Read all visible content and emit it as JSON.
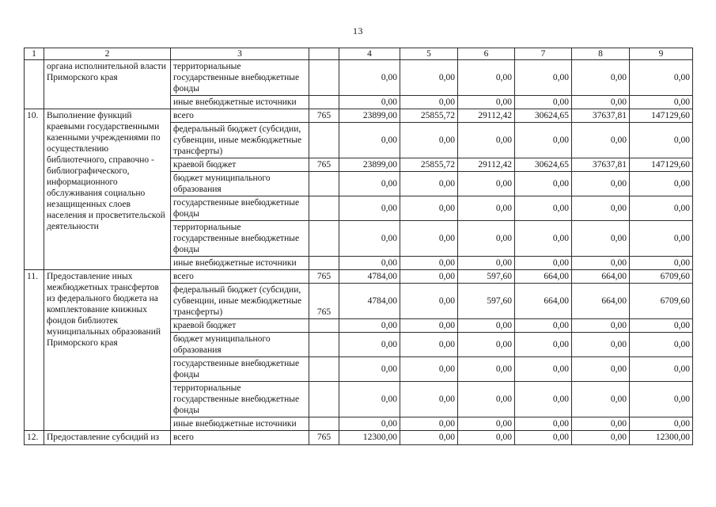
{
  "page": {
    "number": "13"
  },
  "table": {
    "header": [
      "1",
      "2",
      "3",
      "",
      "4",
      "5",
      "6",
      "7",
      "8",
      "9"
    ],
    "sections": [
      {
        "num": "",
        "title": "органа исполнительной власти Приморского края",
        "rows": [
          {
            "source": "территориальные государственные внебюджетные фонды",
            "code": "",
            "values": [
              "0,00",
              "0,00",
              "0,00",
              "0,00",
              "0,00",
              "0,00"
            ]
          },
          {
            "source": "иные внебюджетные источники",
            "code": "",
            "values": [
              "0,00",
              "0,00",
              "0,00",
              "0,00",
              "0,00",
              "0,00"
            ]
          }
        ]
      },
      {
        "num": "10.",
        "title": "Выполнение функций краевыми государственными казенными учреждениями по осуществлению библиотечного, справочно - библиографического, информационного обслуживания социально незащищенных слоев населения и просветительской деятельности",
        "rows": [
          {
            "source": "всего",
            "code": "765",
            "values": [
              "23899,00",
              "25855,72",
              "29112,42",
              "30624,65",
              "37637,81",
              "147129,60"
            ]
          },
          {
            "source": "федеральный бюджет (субсидии, субвенции, иные межбюджетные трансферты)",
            "code": "",
            "values": [
              "0,00",
              "0,00",
              "0,00",
              "0,00",
              "0,00",
              "0,00"
            ]
          },
          {
            "source": "краевой бюджет",
            "code": "765",
            "values": [
              "23899,00",
              "25855,72",
              "29112,42",
              "30624,65",
              "37637,81",
              "147129,60"
            ]
          },
          {
            "source": "бюджет муниципального образования",
            "code": "",
            "values": [
              "0,00",
              "0,00",
              "0,00",
              "0,00",
              "0,00",
              "0,00"
            ]
          },
          {
            "source": "государственные внебюджетные фонды",
            "code": "",
            "values": [
              "0,00",
              "0,00",
              "0,00",
              "0,00",
              "0,00",
              "0,00"
            ]
          },
          {
            "source": "территориальные государственные внебюджетные фонды",
            "code": "",
            "values": [
              "0,00",
              "0,00",
              "0,00",
              "0,00",
              "0,00",
              "0,00"
            ]
          },
          {
            "source": "иные внебюджетные источники",
            "code": "",
            "values": [
              "0,00",
              "0,00",
              "0,00",
              "0,00",
              "0,00",
              "0,00"
            ]
          }
        ]
      },
      {
        "num": "11.",
        "title": "Предоставление иных межбюджетных трансфертов из федерального бюджета на комплектование книжных фондов библиотек муниципальных образований Приморского края",
        "rows": [
          {
            "source": "всего",
            "code": "765",
            "values": [
              "4784,00",
              "0,00",
              "597,60",
              "664,00",
              "664,00",
              "6709,60"
            ]
          },
          {
            "source": "федеральный бюджет (субсидии, субвенции, иные межбюджетные трансферты)",
            "code": "765",
            "values": [
              "4784,00",
              "0,00",
              "597,60",
              "664,00",
              "664,00",
              "6709,60"
            ]
          },
          {
            "source": "краевой бюджет",
            "code": "",
            "values": [
              "0,00",
              "0,00",
              "0,00",
              "0,00",
              "0,00",
              "0,00"
            ]
          },
          {
            "source": "бюджет муниципального образования",
            "code": "",
            "values": [
              "0,00",
              "0,00",
              "0,00",
              "0,00",
              "0,00",
              "0,00"
            ]
          },
          {
            "source": "государственные внебюджетные фонды",
            "code": "",
            "values": [
              "0,00",
              "0,00",
              "0,00",
              "0,00",
              "0,00",
              "0,00"
            ]
          },
          {
            "source": "территориальные государственные внебюджетные фонды",
            "code": "",
            "values": [
              "0,00",
              "0,00",
              "0,00",
              "0,00",
              "0,00",
              "0,00"
            ]
          },
          {
            "source": "иные внебюджетные источники",
            "code": "",
            "values": [
              "0,00",
              "0,00",
              "0,00",
              "0,00",
              "0,00",
              "0,00"
            ]
          }
        ]
      },
      {
        "num": "12.",
        "title": "Предоставление субсидий из",
        "rows": [
          {
            "source": "всего",
            "code": "765",
            "values": [
              "12300,00",
              "0,00",
              "0,00",
              "0,00",
              "0,00",
              "12300,00"
            ]
          }
        ]
      }
    ]
  }
}
